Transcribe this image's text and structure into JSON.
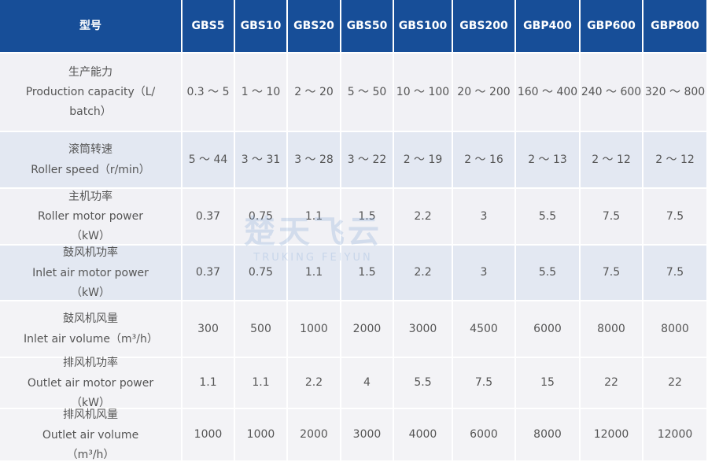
{
  "table": {
    "header": [
      "型号",
      "GBS5",
      "GBS10",
      "GBS20",
      "GBS50",
      "GBS100",
      "GBS200",
      "GBP400",
      "GBP600",
      "GBP800"
    ],
    "rows": [
      {
        "label_zh": "生产能力",
        "label_en": "Production capacity（L/ batch）",
        "values": [
          "0.3 ～ 5",
          "1 ～ 10",
          "2 ～ 20",
          "5 ～ 50",
          "10 ～ 100",
          "20 ～ 200",
          "160 ～ 400",
          "240 ～ 600",
          "320 ～ 800"
        ]
      },
      {
        "label_zh": "滚筒转速",
        "label_en": "Roller speed（r/min）",
        "values": [
          "5 ～ 44",
          "3 ～ 31",
          "3 ～ 28",
          "3 ～ 22",
          "2 ～ 19",
          "2 ～ 16",
          "2 ～ 13",
          "2 ～ 12",
          "2 ～ 12"
        ]
      },
      {
        "label_zh": "主机功率",
        "label_en": "Roller  motor power（kW）",
        "values": [
          "0.37",
          "0.75",
          "1.1",
          "1.5",
          "2.2",
          "3",
          "5.5",
          "7.5",
          "7.5"
        ]
      },
      {
        "label_zh": "鼓风机功率",
        "label_en": "Inlet air motor power（kW）",
        "values": [
          "0.37",
          "0.75",
          "1.1",
          "1.5",
          "2.2",
          "3",
          "5.5",
          "7.5",
          "7.5"
        ]
      },
      {
        "label_zh": "鼓风机风量",
        "label_en": "Inlet air volume（m³/h）",
        "values": [
          "300",
          "500",
          "1000",
          "2000",
          "3000",
          "4500",
          "6000",
          "8000",
          "8000"
        ]
      },
      {
        "label_zh": "排风机功率",
        "label_en": "Outlet air motor power（kW）",
        "values": [
          "1.1",
          "1.1",
          "2.2",
          "4",
          "5.5",
          "7.5",
          "15",
          "22",
          "22"
        ]
      },
      {
        "label_zh": "排风机风量",
        "label_en": "Outlet air volume（m³/h）",
        "values": [
          "1000",
          "1000",
          "2000",
          "3000",
          "4000",
          "6000",
          "8000",
          "12000",
          "12000"
        ]
      }
    ],
    "watermark": {
      "brand_zh": "楚天飞云",
      "brand_en": "TRUKING FEIYUN"
    }
  }
}
